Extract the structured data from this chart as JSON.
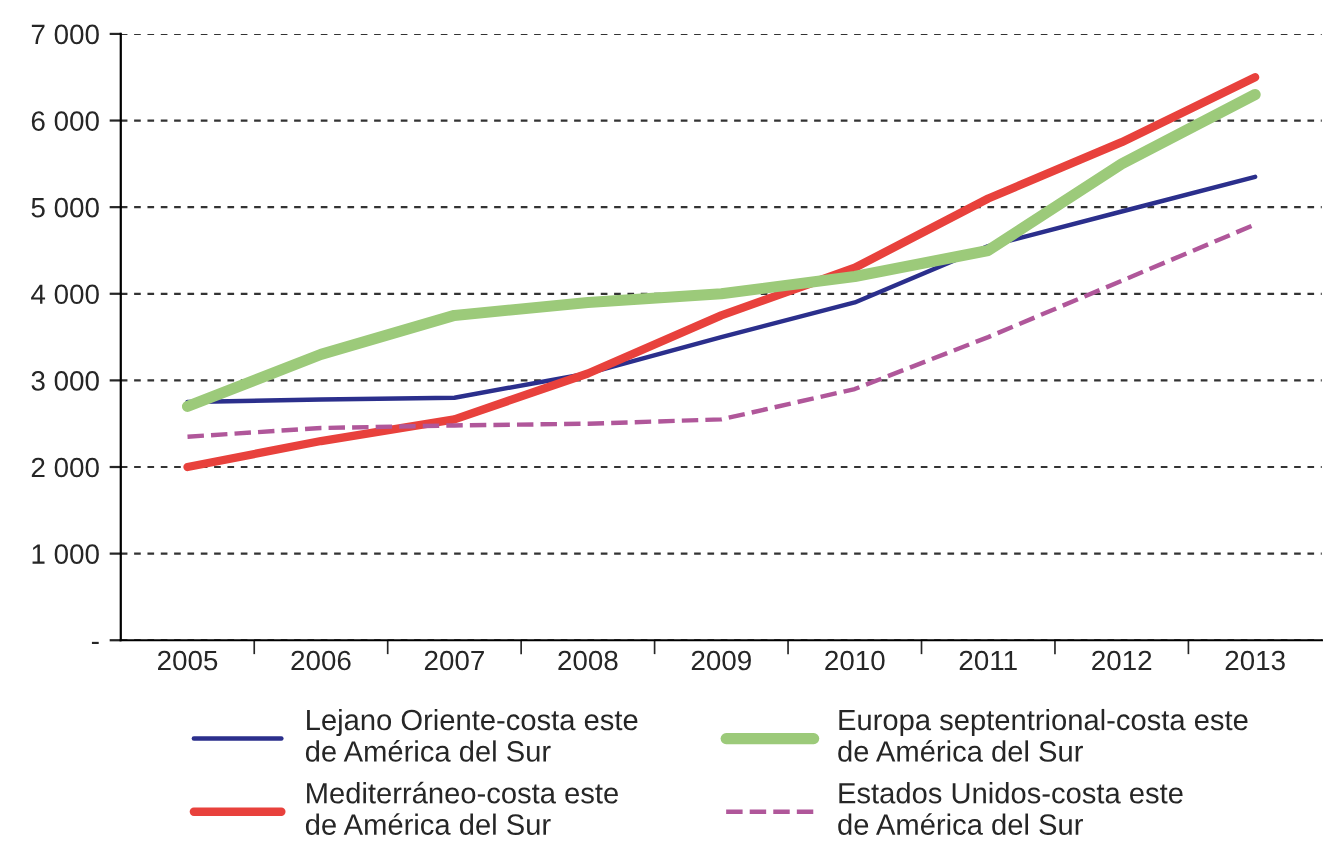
{
  "chart_data": {
    "type": "line",
    "categories": [
      "2005",
      "2006",
      "2007",
      "2008",
      "2009",
      "2010",
      "2011",
      "2012",
      "2013"
    ],
    "series": [
      {
        "name": "Lejano Oriente-costa este\nde América del Sur",
        "color": "#2b2f8c",
        "values": [
          2750,
          2780,
          2800,
          3080,
          3500,
          3900,
          4550,
          4950,
          5350
        ]
      },
      {
        "name": "Mediterráneo-costa este\nde América del Sur",
        "color": "#e8413c",
        "values": [
          2000,
          2300,
          2550,
          3080,
          3750,
          4300,
          5100,
          5750,
          6500
        ]
      },
      {
        "name": "Europa septentrional-costa este\nde América del Sur",
        "color": "#9cca7a",
        "values": [
          2700,
          3300,
          3750,
          3900,
          4000,
          4200,
          4500,
          5500,
          6300
        ]
      },
      {
        "name": "Estados Unidos-costa este\nde América del Sur",
        "color": "#b0579a",
        "line_style": "dashed",
        "values": [
          2350,
          2450,
          2480,
          2500,
          2550,
          2900,
          3500,
          4150,
          4800
        ]
      }
    ],
    "ylim": [
      0,
      7000
    ],
    "yticks": [
      {
        "value": 0,
        "label": "-"
      },
      {
        "value": 1000,
        "label": "1 000"
      },
      {
        "value": 2000,
        "label": "2 000"
      },
      {
        "value": 3000,
        "label": "3 000"
      },
      {
        "value": 4000,
        "label": "4 000"
      },
      {
        "value": 5000,
        "label": "5 000"
      },
      {
        "value": 6000,
        "label": "6 000"
      },
      {
        "value": 7000,
        "label": "7 000"
      }
    ],
    "grid": "y",
    "legend": "bottom",
    "line_style": "solid",
    "marker": "none"
  }
}
